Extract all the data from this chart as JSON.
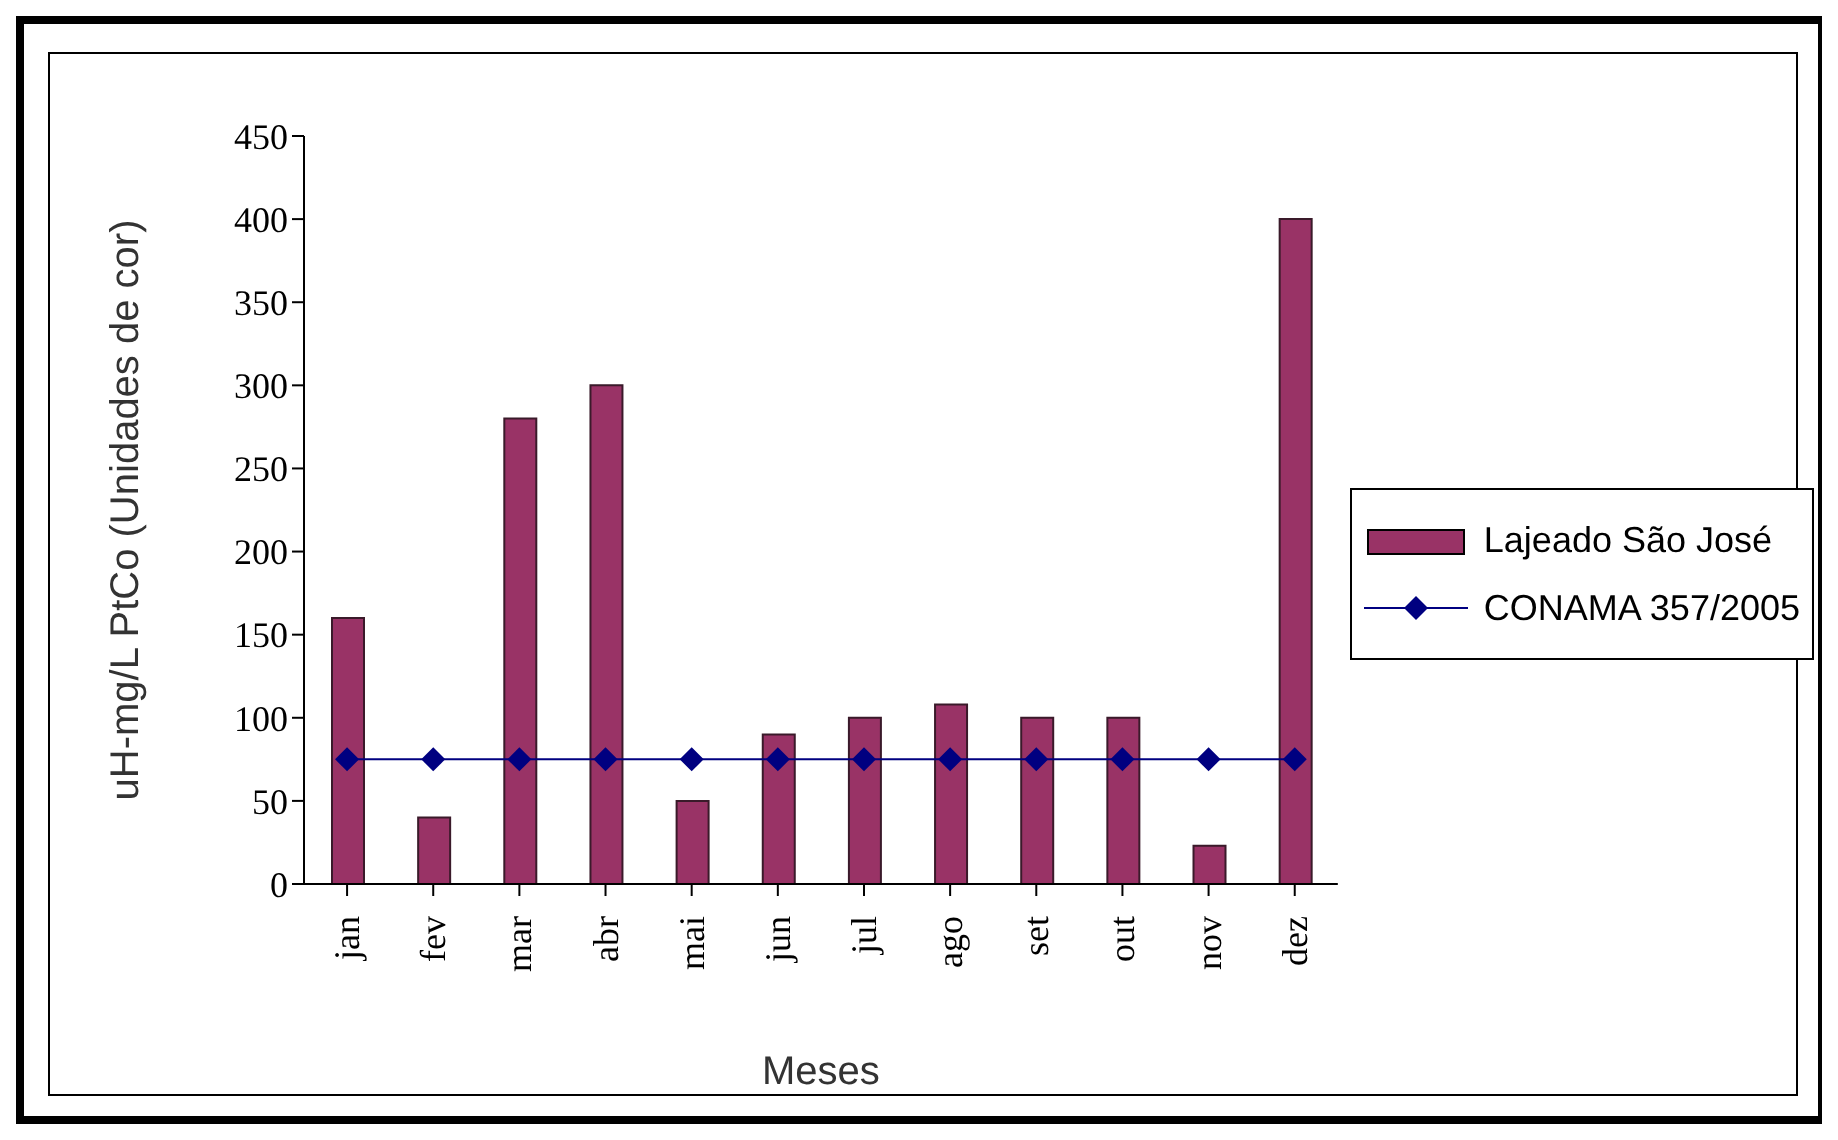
{
  "chart_data": {
    "type": "bar",
    "xlabel": "Meses",
    "ylabel": "uH-mg/L PtCo (Unidades de cor)",
    "categories": [
      "jan",
      "fev",
      "mar",
      "abr",
      "mai",
      "jun",
      "jul",
      "ago",
      "set",
      "out",
      "nov",
      "dez"
    ],
    "series": [
      {
        "name": "Lajeado São José",
        "color": "#993366",
        "values": [
          160,
          40,
          280,
          300,
          50,
          90,
          100,
          108,
          100,
          100,
          23,
          400
        ]
      },
      {
        "name": "CONAMA 357/2005",
        "type": "line",
        "color": "#000080",
        "marker": "diamond",
        "values": [
          75,
          75,
          75,
          75,
          75,
          75,
          75,
          75,
          75,
          75,
          75,
          75
        ]
      }
    ],
    "ylim": [
      0,
      450
    ],
    "yticks": [
      0,
      50,
      100,
      150,
      200,
      250,
      300,
      350,
      400,
      450
    ],
    "grid": false,
    "legend": "right"
  }
}
